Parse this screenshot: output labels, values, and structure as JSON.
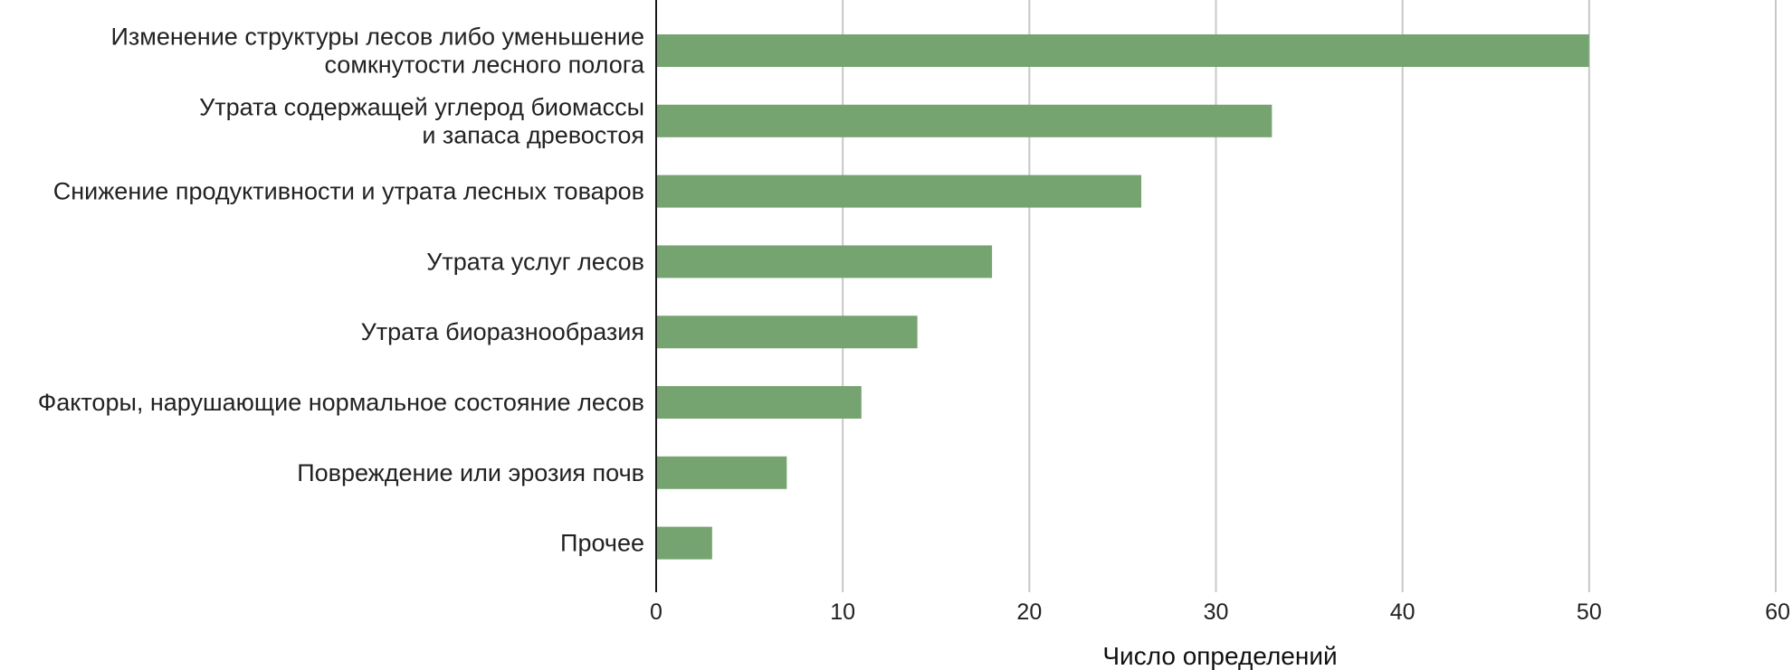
{
  "chart_data": {
    "type": "bar",
    "orientation": "horizontal",
    "title": "",
    "xlabel": "Число определений",
    "ylabel": "",
    "xlim": [
      0,
      60
    ],
    "x_ticks": [
      0,
      10,
      20,
      30,
      40,
      50,
      60
    ],
    "grid": true,
    "legend": "none",
    "bar_color": "#75a470",
    "categories": [
      [
        "Изменение структуры лесов либо уменьшение",
        "сомкнутости лесного полога"
      ],
      [
        "Утрата содержащей углерод биомассы",
        "и запаса древостоя"
      ],
      [
        "Снижение продуктивности и утрата лесных товаров"
      ],
      [
        "Утрата услуг лесов"
      ],
      [
        "Утрата биоразнообразия"
      ],
      [
        "Факторы, нарушающие нормальное состояние лесов"
      ],
      [
        "Повреждение или эрозия почв"
      ],
      [
        "Прочее"
      ]
    ],
    "values": [
      50,
      33,
      26,
      18,
      14,
      11,
      7,
      3
    ]
  }
}
